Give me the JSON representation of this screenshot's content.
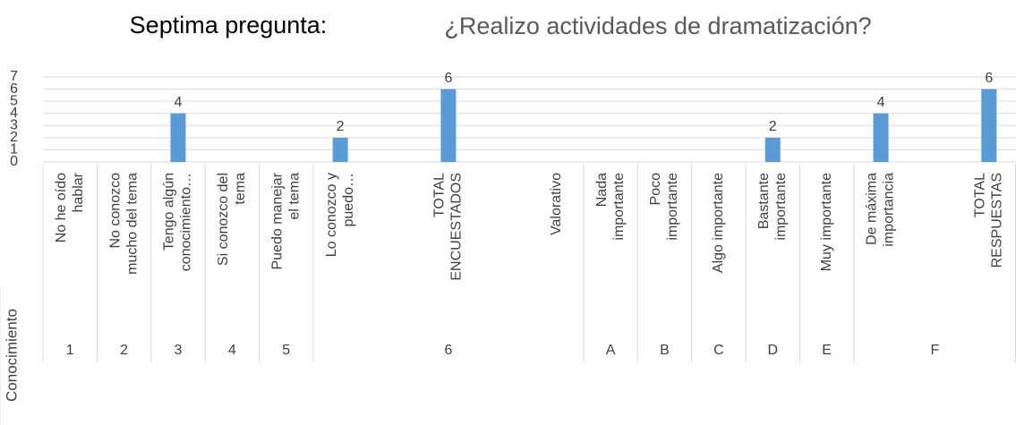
{
  "chart_data": {
    "type": "bar",
    "title": "Septima pregunta:",
    "subtitle": "¿Realizo actividades de dramatización?",
    "group_title": "Conocimiento",
    "categories": [
      [
        "No he oído",
        "hablar"
      ],
      [
        "No conozco",
        "mucho del tema"
      ],
      [
        "Tengo algún",
        "conocimiento…"
      ],
      [
        "Si conozco del",
        "tema"
      ],
      [
        "Puedo manejar",
        "el tema"
      ],
      [
        "Lo conozco y",
        "puedo…"
      ],
      null,
      [
        "TOTAL",
        "ENCUESTADOS"
      ],
      null,
      [
        "Valorativo"
      ],
      [
        "Nada",
        "importante"
      ],
      [
        "Poco",
        "importante"
      ],
      [
        "Algo importante"
      ],
      [
        "Bastante",
        "importante"
      ],
      [
        "Muy importante"
      ],
      [
        "De máxima",
        "importancia"
      ],
      null,
      [
        "TOTAL",
        "RESPUESTAS"
      ]
    ],
    "groups": [
      "1",
      "2",
      "3",
      "4",
      "5",
      "6",
      null,
      null,
      null,
      null,
      "A",
      "B",
      "C",
      "D",
      "E",
      "F",
      null,
      null
    ],
    "values": [
      null,
      null,
      4,
      null,
      null,
      2,
      null,
      6,
      null,
      null,
      null,
      null,
      null,
      2,
      null,
      4,
      null,
      6
    ],
    "color": "#5b9bd5",
    "ylim": [
      0,
      7
    ],
    "yticks": [
      0,
      1,
      2,
      3,
      4,
      5,
      6,
      7
    ],
    "grid": true
  }
}
